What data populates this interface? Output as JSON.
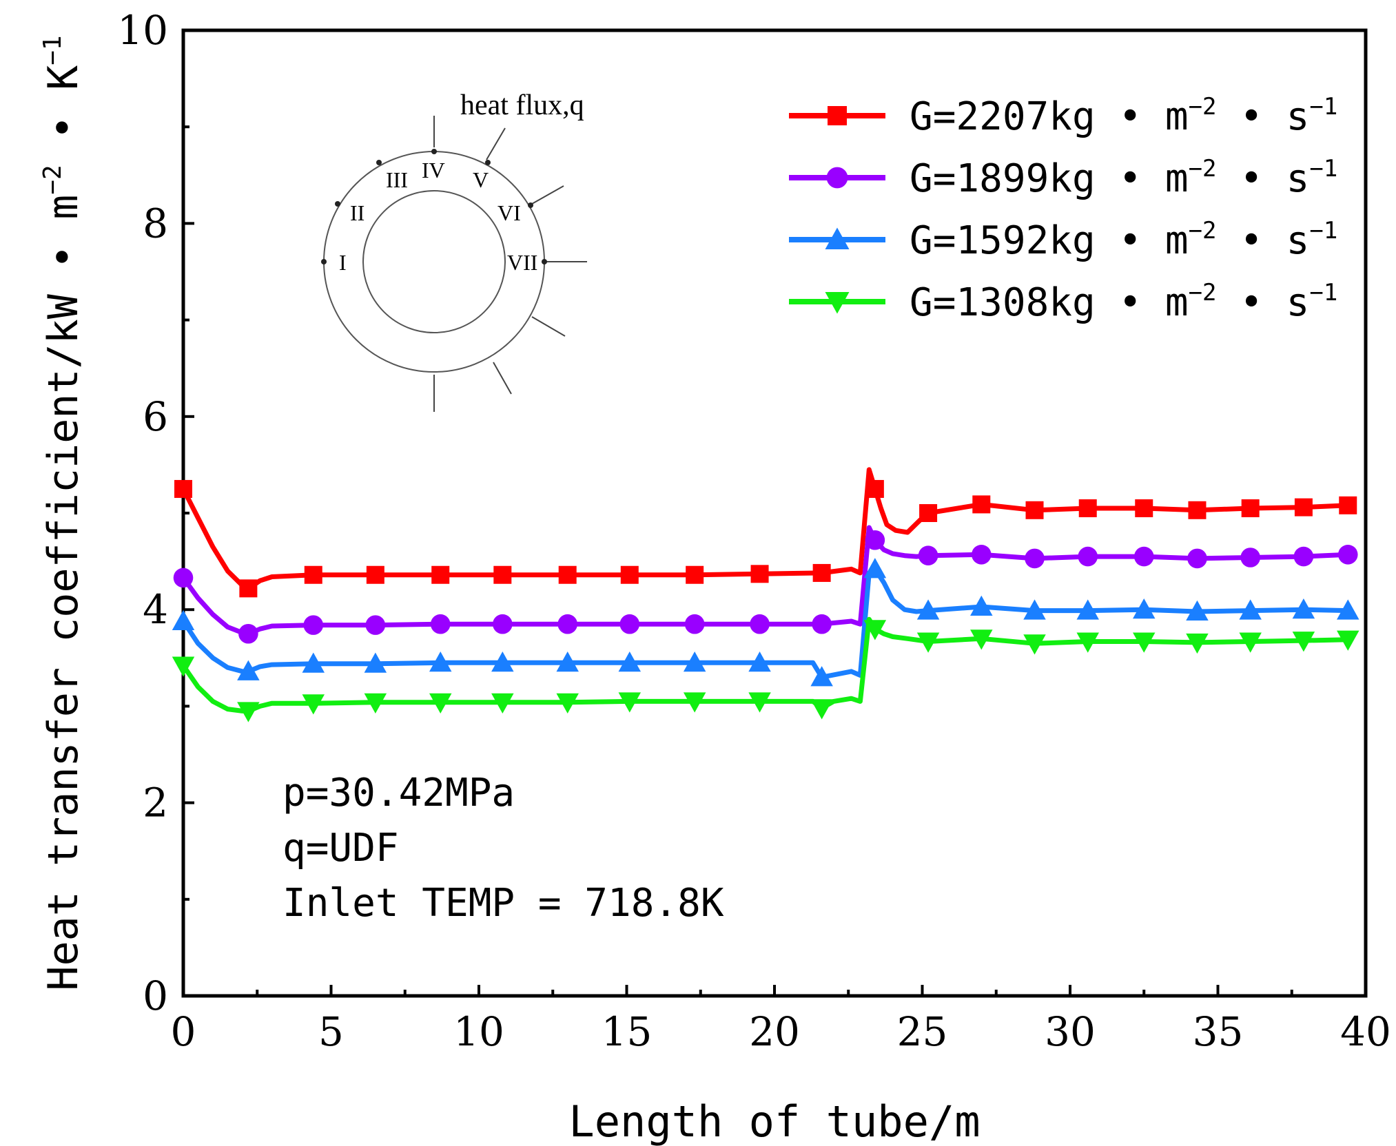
{
  "chart_data": {
    "type": "line",
    "xlabel": "Length of tube/m",
    "ylabel": "Heat transfer coefficient/kW • m",
    "ylabel_exp1": "−2",
    "ylabel_mid": " • K",
    "ylabel_exp2": "−1",
    "xlim": [
      0,
      40
    ],
    "ylim": [
      0,
      10
    ],
    "xticks": [
      0,
      5,
      10,
      15,
      20,
      25,
      30,
      35,
      40
    ],
    "xtick_labels": [
      "0",
      "5",
      "10",
      "15",
      "20",
      "25",
      "30",
      "35",
      "40"
    ],
    "yticks": [
      0,
      2,
      4,
      6,
      8,
      10
    ],
    "ytick_labels": [
      "0",
      "2",
      "4",
      "6",
      "8",
      "10"
    ],
    "grid": false,
    "legend_position": "top-right",
    "annotations": [
      "p=30.42MPa",
      "q=UDF",
      "Inlet TEMP = 718.8K"
    ],
    "inset": {
      "title": "heat flux,q",
      "labels": [
        "I",
        "II",
        "III",
        "IV",
        "V",
        "VI",
        "VII"
      ]
    },
    "series": [
      {
        "name": "G=2207kg • m⁻² • s⁻¹",
        "legend_main": "G=2207kg • m",
        "legend_exp1": "−2",
        "legend_mid": " • s",
        "legend_exp2": "−1",
        "color": "#ff0000",
        "marker": "square",
        "x": [
          0,
          0.5,
          1.0,
          1.5,
          2.0,
          2.2,
          2.6,
          3.0,
          4.4,
          6.5,
          8.7,
          10.8,
          13.0,
          15.1,
          17.3,
          19.5,
          21.6,
          22.6,
          22.9,
          23.2,
          23.4,
          23.6,
          23.8,
          24.1,
          24.5,
          24.9,
          25.2,
          27.0,
          28.8,
          30.6,
          32.5,
          34.3,
          36.1,
          37.9,
          39.4
        ],
        "y": [
          5.25,
          4.95,
          4.65,
          4.4,
          4.25,
          4.22,
          4.3,
          4.34,
          4.36,
          4.36,
          4.36,
          4.36,
          4.36,
          4.36,
          4.36,
          4.37,
          4.38,
          4.42,
          4.38,
          5.45,
          5.25,
          5.05,
          4.88,
          4.82,
          4.8,
          4.92,
          5.0,
          5.09,
          5.03,
          5.05,
          5.05,
          5.03,
          5.05,
          5.06,
          5.08
        ],
        "marker_x": [
          0,
          2.2,
          4.4,
          6.5,
          8.7,
          10.8,
          13.0,
          15.1,
          17.3,
          19.5,
          21.6,
          23.4,
          25.2,
          27.0,
          28.8,
          30.6,
          32.5,
          34.3,
          36.1,
          37.9,
          39.4
        ],
        "marker_y": [
          5.25,
          4.22,
          4.36,
          4.36,
          4.36,
          4.36,
          4.36,
          4.36,
          4.36,
          4.37,
          4.38,
          5.25,
          5.0,
          5.09,
          5.03,
          5.05,
          5.05,
          5.03,
          5.05,
          5.06,
          5.08
        ]
      },
      {
        "name": "G=1899kg • m⁻² • s⁻¹",
        "legend_main": "G=1899kg • m",
        "legend_exp1": "−2",
        "legend_mid": " • s",
        "legend_exp2": "−1",
        "color": "#9900ff",
        "marker": "circle",
        "x": [
          0,
          0.5,
          1.0,
          1.5,
          2.0,
          2.2,
          2.6,
          3.0,
          4.4,
          6.5,
          8.7,
          10.8,
          13.0,
          15.1,
          17.3,
          19.5,
          21.6,
          22.6,
          22.9,
          23.2,
          23.4,
          23.7,
          24.0,
          24.4,
          24.8,
          25.2,
          27.0,
          28.8,
          30.6,
          32.5,
          34.3,
          36.1,
          37.9,
          39.4
        ],
        "y": [
          4.33,
          4.12,
          3.95,
          3.82,
          3.76,
          3.75,
          3.8,
          3.83,
          3.84,
          3.84,
          3.85,
          3.85,
          3.85,
          3.85,
          3.85,
          3.85,
          3.85,
          3.88,
          3.85,
          4.85,
          4.72,
          4.62,
          4.58,
          4.56,
          4.55,
          4.56,
          4.57,
          4.53,
          4.55,
          4.55,
          4.53,
          4.54,
          4.55,
          4.57
        ],
        "marker_x": [
          0,
          2.2,
          4.4,
          6.5,
          8.7,
          10.8,
          13.0,
          15.1,
          17.3,
          19.5,
          21.6,
          23.4,
          25.2,
          27.0,
          28.8,
          30.6,
          32.5,
          34.3,
          36.1,
          37.9,
          39.4
        ],
        "marker_y": [
          4.33,
          3.75,
          3.84,
          3.84,
          3.85,
          3.85,
          3.85,
          3.85,
          3.85,
          3.85,
          3.85,
          4.72,
          4.56,
          4.57,
          4.53,
          4.55,
          4.55,
          4.53,
          4.54,
          4.55,
          4.57
        ]
      },
      {
        "name": "G=1592kg • m⁻² • s⁻¹",
        "legend_main": "G=1592kg • m",
        "legend_exp1": "−2",
        "legend_mid": " • s",
        "legend_exp2": "−1",
        "color": "#1a7fff",
        "marker": "triangle-up",
        "x": [
          0,
          0.5,
          1.0,
          1.5,
          2.0,
          2.2,
          2.6,
          3.0,
          4.4,
          6.5,
          8.7,
          10.8,
          13.0,
          15.1,
          17.3,
          19.5,
          21.3,
          21.6,
          22.6,
          22.9,
          23.2,
          23.4,
          23.7,
          24.0,
          24.4,
          24.8,
          25.2,
          27.0,
          28.8,
          30.6,
          32.5,
          34.3,
          36.1,
          37.9,
          39.4
        ],
        "y": [
          3.88,
          3.65,
          3.5,
          3.4,
          3.36,
          3.36,
          3.41,
          3.43,
          3.44,
          3.44,
          3.45,
          3.45,
          3.45,
          3.45,
          3.45,
          3.45,
          3.45,
          3.3,
          3.36,
          3.32,
          4.38,
          4.42,
          4.28,
          4.1,
          4.0,
          3.98,
          3.99,
          4.03,
          3.99,
          3.99,
          4.0,
          3.98,
          3.99,
          4.0,
          3.99
        ],
        "marker_x": [
          0,
          2.2,
          4.4,
          6.5,
          8.7,
          10.8,
          13.0,
          15.1,
          17.3,
          19.5,
          21.6,
          23.4,
          25.2,
          27.0,
          28.8,
          30.6,
          32.5,
          34.3,
          36.1,
          37.9,
          39.4
        ],
        "marker_y": [
          3.88,
          3.36,
          3.44,
          3.44,
          3.45,
          3.45,
          3.45,
          3.45,
          3.45,
          3.45,
          3.3,
          4.42,
          3.99,
          4.03,
          3.99,
          3.99,
          4.0,
          3.98,
          3.99,
          4.0,
          3.99
        ]
      },
      {
        "name": "G=1308kg • m⁻² • s⁻¹",
        "legend_main": "G=1308kg • m",
        "legend_exp1": "−2",
        "legend_mid": " • s",
        "legend_exp2": "−1",
        "color": "#11ee11",
        "marker": "triangle-down",
        "x": [
          0,
          0.5,
          1.0,
          1.5,
          2.0,
          2.2,
          2.6,
          3.0,
          4.4,
          6.5,
          8.7,
          10.8,
          13.0,
          15.1,
          17.3,
          19.5,
          21.3,
          21.6,
          22.0,
          22.6,
          22.9,
          23.2,
          23.4,
          23.7,
          24.0,
          24.5,
          25.2,
          27.0,
          28.8,
          30.6,
          32.5,
          34.3,
          36.1,
          37.9,
          39.4
        ],
        "y": [
          3.42,
          3.2,
          3.05,
          2.97,
          2.95,
          2.95,
          3.0,
          3.03,
          3.03,
          3.04,
          3.04,
          3.04,
          3.04,
          3.05,
          3.05,
          3.05,
          3.05,
          2.98,
          3.05,
          3.08,
          3.05,
          3.9,
          3.8,
          3.75,
          3.72,
          3.7,
          3.67,
          3.7,
          3.65,
          3.67,
          3.67,
          3.66,
          3.67,
          3.68,
          3.69
        ],
        "marker_x": [
          0,
          2.2,
          4.4,
          6.5,
          8.7,
          10.8,
          13.0,
          15.1,
          17.3,
          19.5,
          21.6,
          23.4,
          25.2,
          27.0,
          28.8,
          30.6,
          32.5,
          34.3,
          36.1,
          37.9,
          39.4
        ],
        "marker_y": [
          3.42,
          2.95,
          3.03,
          3.04,
          3.04,
          3.04,
          3.04,
          3.05,
          3.05,
          3.05,
          2.98,
          3.8,
          3.67,
          3.7,
          3.65,
          3.67,
          3.67,
          3.66,
          3.67,
          3.68,
          3.69
        ]
      }
    ]
  }
}
